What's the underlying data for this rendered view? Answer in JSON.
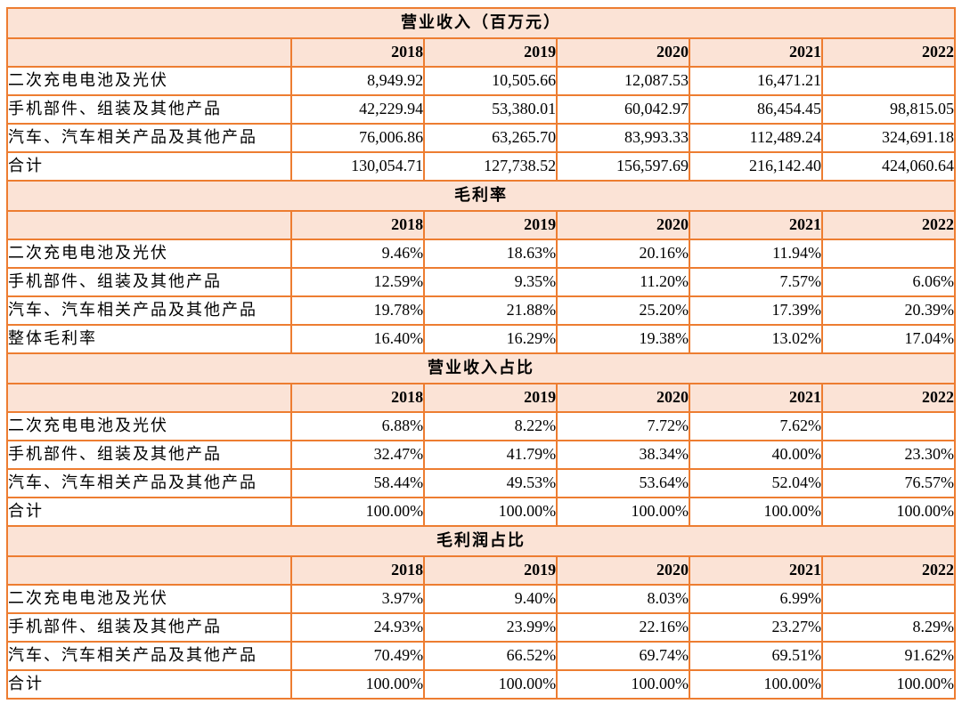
{
  "colors": {
    "border": "#ED7D31",
    "band_background": "#FBE3D6",
    "row_background": "#FFFFFF",
    "text": "#000000"
  },
  "table": {
    "columns": [
      "",
      "2018",
      "2019",
      "2020",
      "2021",
      "2022"
    ],
    "sections": [
      {
        "title": "营业收入（百万元）",
        "rows": [
          {
            "label": "二次充电电池及光伏",
            "values": [
              "8,949.92",
              "10,505.66",
              "12,087.53",
              "16,471.21",
              ""
            ]
          },
          {
            "label": "手机部件、组装及其他产品",
            "values": [
              "42,229.94",
              "53,380.01",
              "60,042.97",
              "86,454.45",
              "98,815.05"
            ]
          },
          {
            "label": "汽车、汽车相关产品及其他产品",
            "values": [
              "76,006.86",
              "63,265.70",
              "83,993.33",
              "112,489.24",
              "324,691.18"
            ]
          },
          {
            "label": "合计",
            "values": [
              "130,054.71",
              "127,738.52",
              "156,597.69",
              "216,142.40",
              "424,060.64"
            ]
          }
        ]
      },
      {
        "title": "毛利率",
        "rows": [
          {
            "label": "二次充电电池及光伏",
            "values": [
              "9.46%",
              "18.63%",
              "20.16%",
              "11.94%",
              ""
            ]
          },
          {
            "label": "手机部件、组装及其他产品",
            "values": [
              "12.59%",
              "9.35%",
              "11.20%",
              "7.57%",
              "6.06%"
            ]
          },
          {
            "label": "汽车、汽车相关产品及其他产品",
            "values": [
              "19.78%",
              "21.88%",
              "25.20%",
              "17.39%",
              "20.39%"
            ]
          },
          {
            "label": "整体毛利率",
            "values": [
              "16.40%",
              "16.29%",
              "19.38%",
              "13.02%",
              "17.04%"
            ]
          }
        ]
      },
      {
        "title": "营业收入占比",
        "rows": [
          {
            "label": "二次充电电池及光伏",
            "values": [
              "6.88%",
              "8.22%",
              "7.72%",
              "7.62%",
              ""
            ]
          },
          {
            "label": "手机部件、组装及其他产品",
            "values": [
              "32.47%",
              "41.79%",
              "38.34%",
              "40.00%",
              "23.30%"
            ]
          },
          {
            "label": "汽车、汽车相关产品及其他产品",
            "values": [
              "58.44%",
              "49.53%",
              "53.64%",
              "52.04%",
              "76.57%"
            ]
          },
          {
            "label": "合计",
            "values": [
              "100.00%",
              "100.00%",
              "100.00%",
              "100.00%",
              "100.00%"
            ]
          }
        ]
      },
      {
        "title": "毛利润占比",
        "rows": [
          {
            "label": "二次充电电池及光伏",
            "values": [
              "3.97%",
              "9.40%",
              "8.03%",
              "6.99%",
              ""
            ]
          },
          {
            "label": "手机部件、组装及其他产品",
            "values": [
              "24.93%",
              "23.99%",
              "22.16%",
              "23.27%",
              "8.29%"
            ]
          },
          {
            "label": "汽车、汽车相关产品及其他产品",
            "values": [
              "70.49%",
              "66.52%",
              "69.74%",
              "69.51%",
              "91.62%"
            ]
          },
          {
            "label": "合计",
            "values": [
              "100.00%",
              "100.00%",
              "100.00%",
              "100.00%",
              "100.00%"
            ]
          }
        ]
      }
    ]
  },
  "chart_data": [
    {
      "type": "table",
      "title": "营业收入（百万元）",
      "categories": [
        "2018",
        "2019",
        "2020",
        "2021",
        "2022"
      ],
      "series": [
        {
          "name": "二次充电电池及光伏",
          "values": [
            8949.92,
            10505.66,
            12087.53,
            16471.21,
            null
          ]
        },
        {
          "name": "手机部件、组装及其他产品",
          "values": [
            42229.94,
            53380.01,
            60042.97,
            86454.45,
            98815.05
          ]
        },
        {
          "name": "汽车、汽车相关产品及其他产品",
          "values": [
            76006.86,
            63265.7,
            83993.33,
            112489.24,
            324691.18
          ]
        },
        {
          "name": "合计",
          "values": [
            130054.71,
            127738.52,
            156597.69,
            216142.4,
            424060.64
          ]
        }
      ]
    },
    {
      "type": "table",
      "title": "毛利率",
      "unit": "%",
      "categories": [
        "2018",
        "2019",
        "2020",
        "2021",
        "2022"
      ],
      "series": [
        {
          "name": "二次充电电池及光伏",
          "values": [
            9.46,
            18.63,
            20.16,
            11.94,
            null
          ]
        },
        {
          "name": "手机部件、组装及其他产品",
          "values": [
            12.59,
            9.35,
            11.2,
            7.57,
            6.06
          ]
        },
        {
          "name": "汽车、汽车相关产品及其他产品",
          "values": [
            19.78,
            21.88,
            25.2,
            17.39,
            20.39
          ]
        },
        {
          "name": "整体毛利率",
          "values": [
            16.4,
            16.29,
            19.38,
            13.02,
            17.04
          ]
        }
      ]
    },
    {
      "type": "table",
      "title": "营业收入占比",
      "unit": "%",
      "categories": [
        "2018",
        "2019",
        "2020",
        "2021",
        "2022"
      ],
      "series": [
        {
          "name": "二次充电电池及光伏",
          "values": [
            6.88,
            8.22,
            7.72,
            7.62,
            null
          ]
        },
        {
          "name": "手机部件、组装及其他产品",
          "values": [
            32.47,
            41.79,
            38.34,
            40.0,
            23.3
          ]
        },
        {
          "name": "汽车、汽车相关产品及其他产品",
          "values": [
            58.44,
            49.53,
            53.64,
            52.04,
            76.57
          ]
        },
        {
          "name": "合计",
          "values": [
            100.0,
            100.0,
            100.0,
            100.0,
            100.0
          ]
        }
      ]
    },
    {
      "type": "table",
      "title": "毛利润占比",
      "unit": "%",
      "categories": [
        "2018",
        "2019",
        "2020",
        "2021",
        "2022"
      ],
      "series": [
        {
          "name": "二次充电电池及光伏",
          "values": [
            3.97,
            9.4,
            8.03,
            6.99,
            null
          ]
        },
        {
          "name": "手机部件、组装及其他产品",
          "values": [
            24.93,
            23.99,
            22.16,
            23.27,
            8.29
          ]
        },
        {
          "name": "汽车、汽车相关产品及其他产品",
          "values": [
            70.49,
            66.52,
            69.74,
            69.51,
            91.62
          ]
        },
        {
          "name": "合计",
          "values": [
            100.0,
            100.0,
            100.0,
            100.0,
            100.0
          ]
        }
      ]
    }
  ]
}
